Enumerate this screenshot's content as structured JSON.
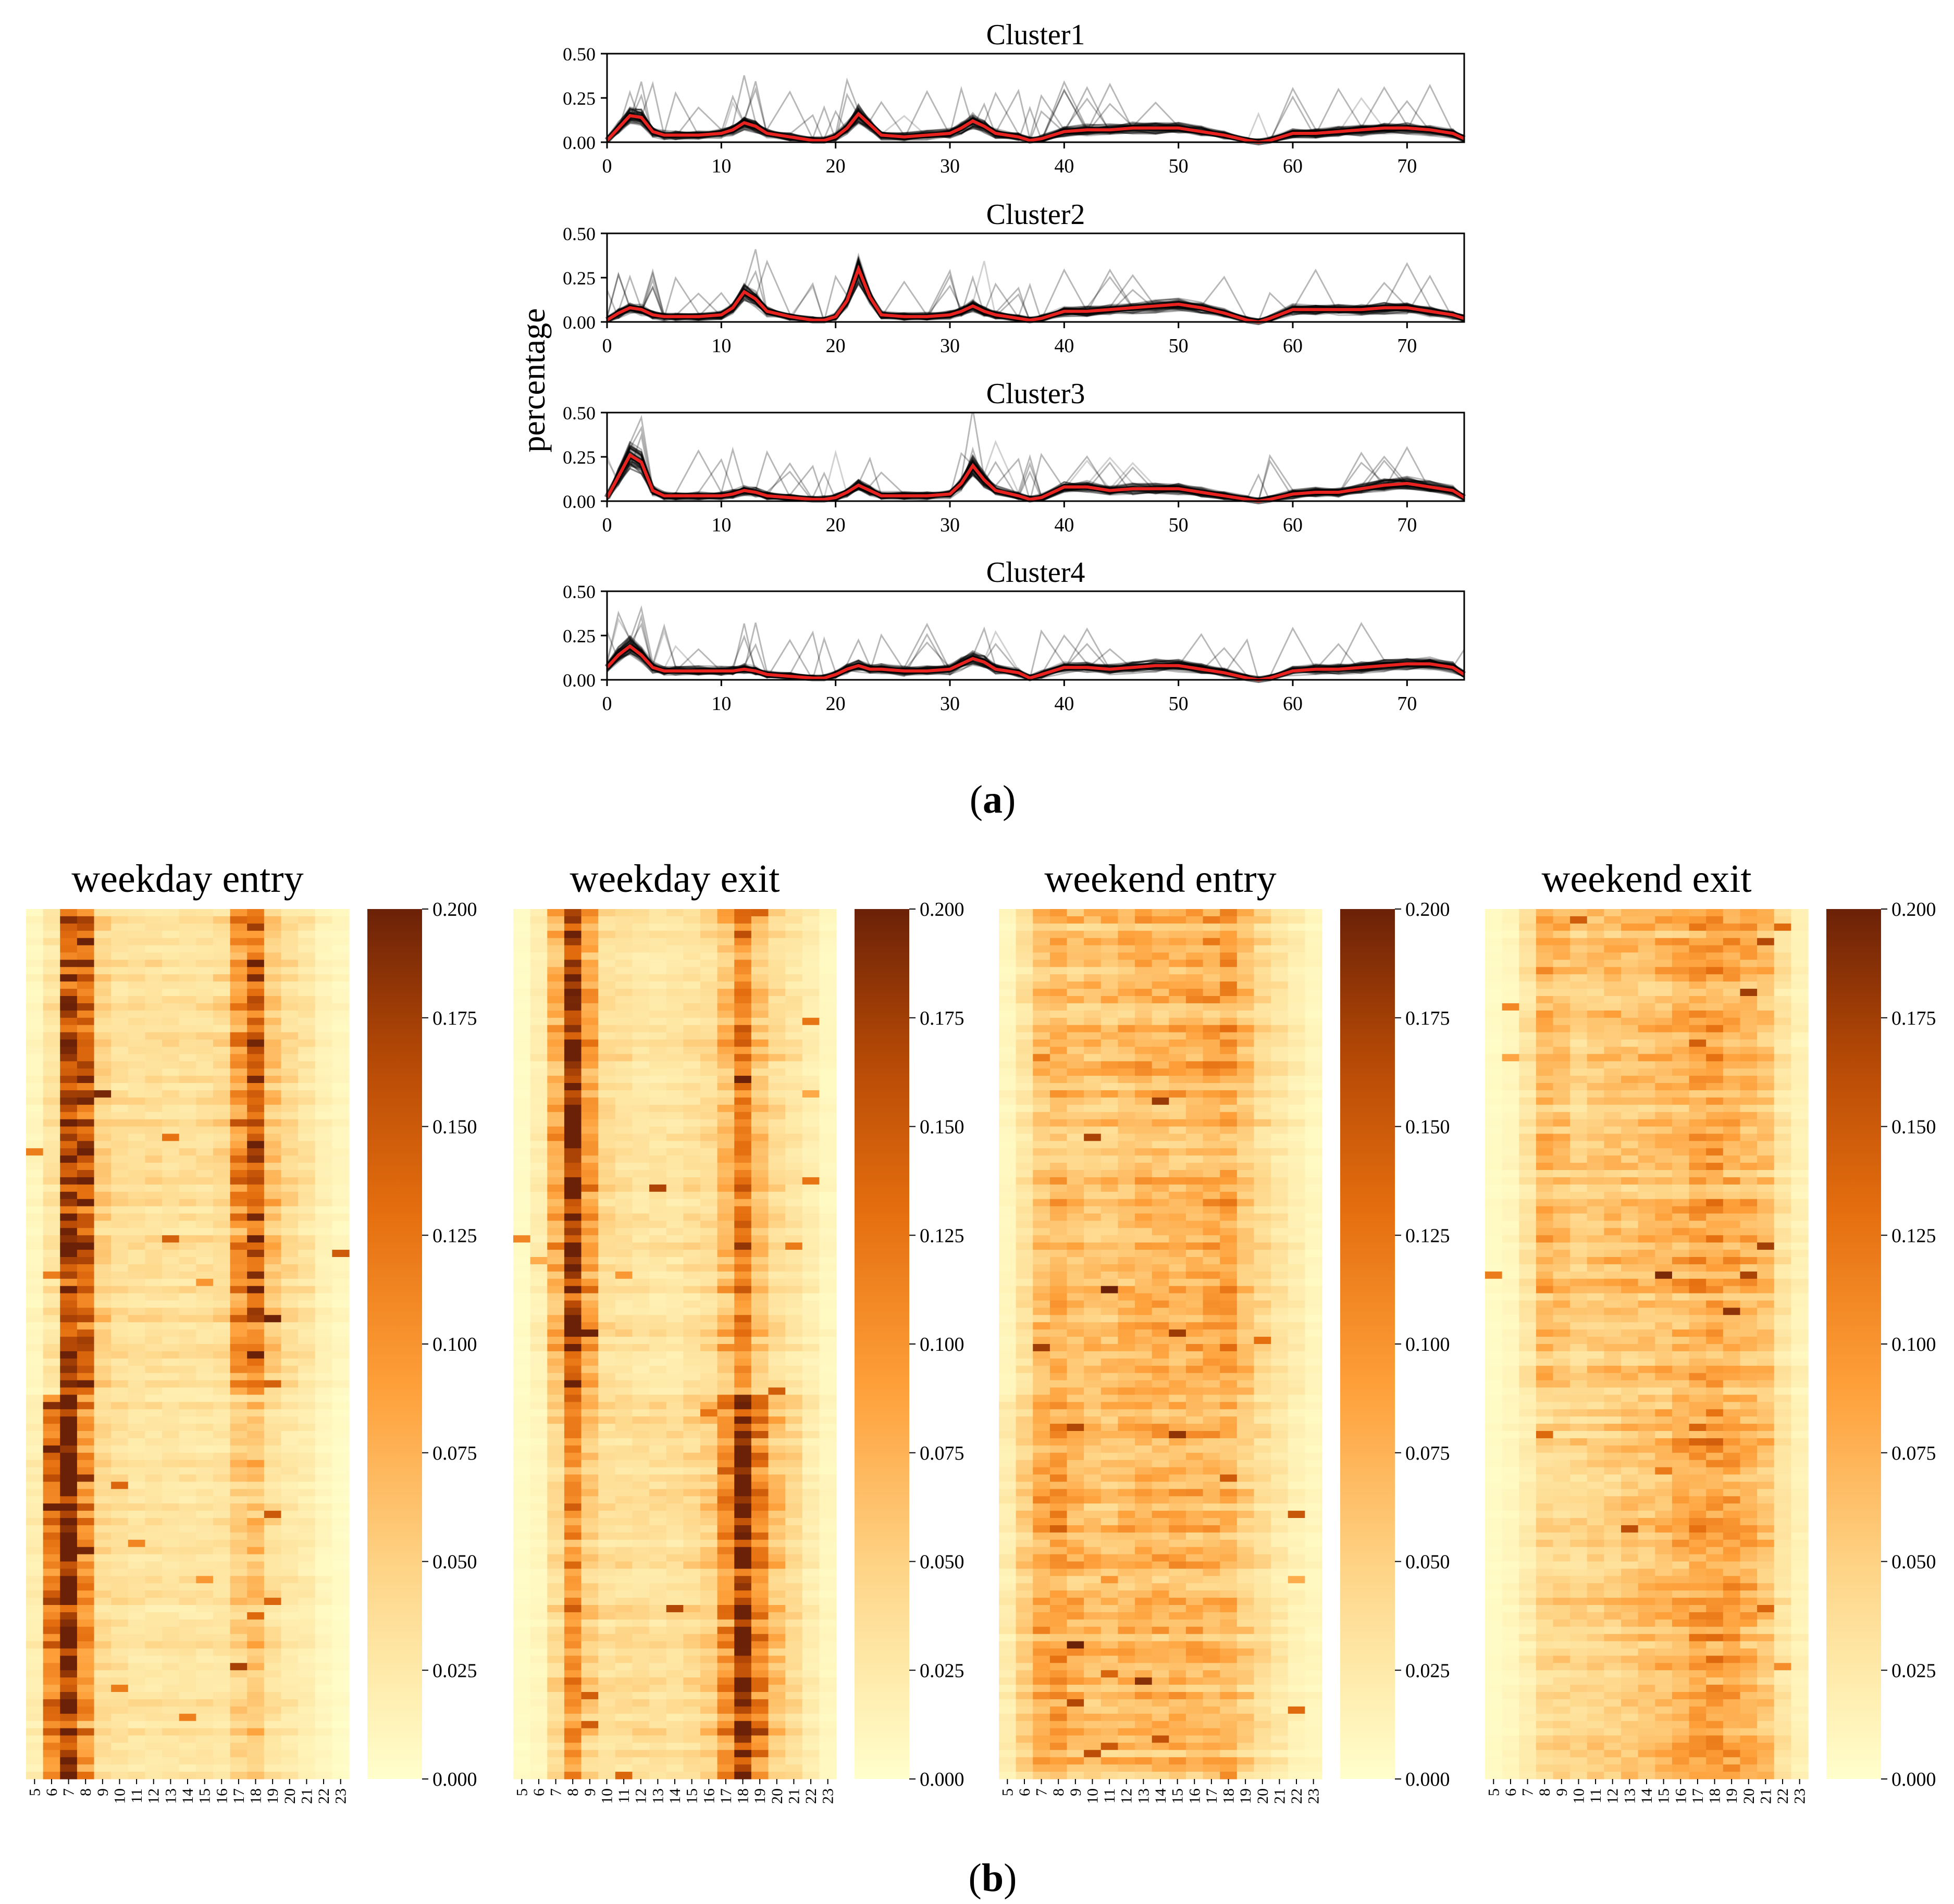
{
  "figure": {
    "panel_a_label_open": "(",
    "panel_a_label_letter": "a",
    "panel_a_label_close": ")",
    "panel_b_label_open": "(",
    "panel_b_label_letter": "b",
    "panel_b_label_close": ")",
    "shared_ylabel": "percentage"
  },
  "colors": {
    "mean_line": "#e8231f",
    "member_lines": "#000000",
    "heat_low": "#ffffcc",
    "heat_high": "#6b2107"
  },
  "chart_data": [
    {
      "type": "line",
      "title": "Cluster1",
      "xlim": [
        0,
        75
      ],
      "ylim": [
        0,
        0.5
      ],
      "xticks": [
        "0",
        "10",
        "20",
        "30",
        "40",
        "50",
        "60",
        "70"
      ],
      "yticks": [
        "0.00",
        "0.25",
        "0.50"
      ],
      "mean_x": [
        0,
        1,
        2,
        3,
        4,
        5,
        6,
        8,
        10,
        11,
        12,
        13,
        14,
        16,
        18,
        19,
        20,
        21,
        22,
        23,
        24,
        26,
        28,
        30,
        31,
        32,
        33,
        34,
        36,
        37,
        38,
        40,
        42,
        44,
        46,
        48,
        50,
        52,
        54,
        56,
        57,
        58,
        60,
        62,
        64,
        66,
        68,
        70,
        72,
        74,
        75
      ],
      "mean_y": [
        0.01,
        0.08,
        0.15,
        0.14,
        0.06,
        0.04,
        0.04,
        0.04,
        0.05,
        0.07,
        0.11,
        0.09,
        0.05,
        0.03,
        0.01,
        0.01,
        0.03,
        0.08,
        0.16,
        0.1,
        0.04,
        0.03,
        0.04,
        0.05,
        0.08,
        0.12,
        0.09,
        0.05,
        0.03,
        0.01,
        0.02,
        0.06,
        0.07,
        0.07,
        0.08,
        0.08,
        0.08,
        0.06,
        0.04,
        0.01,
        0.0,
        0.01,
        0.05,
        0.05,
        0.06,
        0.07,
        0.08,
        0.08,
        0.07,
        0.05,
        0.02
      ],
      "member_count": 60
    },
    {
      "type": "line",
      "title": "Cluster2",
      "xlim": [
        0,
        75
      ],
      "ylim": [
        0,
        0.5
      ],
      "xticks": [
        "0",
        "10",
        "20",
        "30",
        "40",
        "50",
        "60",
        "70"
      ],
      "yticks": [
        "0.00",
        "0.25",
        "0.50"
      ],
      "mean_x": [
        0,
        1,
        2,
        3,
        4,
        5,
        6,
        8,
        10,
        11,
        12,
        13,
        14,
        16,
        18,
        19,
        20,
        21,
        22,
        23,
        24,
        26,
        28,
        30,
        31,
        32,
        33,
        34,
        36,
        37,
        38,
        40,
        42,
        44,
        46,
        48,
        50,
        52,
        54,
        56,
        57,
        58,
        60,
        62,
        64,
        66,
        68,
        70,
        72,
        74,
        75
      ],
      "mean_y": [
        0.01,
        0.05,
        0.08,
        0.07,
        0.04,
        0.03,
        0.03,
        0.03,
        0.04,
        0.08,
        0.17,
        0.13,
        0.06,
        0.03,
        0.01,
        0.01,
        0.03,
        0.12,
        0.3,
        0.14,
        0.04,
        0.03,
        0.03,
        0.04,
        0.06,
        0.09,
        0.06,
        0.04,
        0.02,
        0.01,
        0.02,
        0.06,
        0.06,
        0.07,
        0.08,
        0.09,
        0.1,
        0.08,
        0.05,
        0.01,
        0.0,
        0.02,
        0.07,
        0.07,
        0.07,
        0.07,
        0.08,
        0.08,
        0.06,
        0.04,
        0.02
      ],
      "member_count": 60
    },
    {
      "type": "line",
      "title": "Cluster3",
      "xlim": [
        0,
        75
      ],
      "ylim": [
        0,
        0.5
      ],
      "xticks": [
        "0",
        "10",
        "20",
        "30",
        "40",
        "50",
        "60",
        "70"
      ],
      "yticks": [
        "0.00",
        "0.25",
        "0.50"
      ],
      "mean_x": [
        0,
        1,
        2,
        3,
        4,
        5,
        6,
        8,
        10,
        11,
        12,
        13,
        14,
        16,
        18,
        19,
        20,
        21,
        22,
        23,
        24,
        26,
        28,
        30,
        31,
        32,
        33,
        34,
        36,
        37,
        38,
        40,
        42,
        44,
        46,
        48,
        50,
        52,
        54,
        56,
        57,
        58,
        60,
        62,
        64,
        66,
        68,
        70,
        72,
        74,
        75
      ],
      "mean_y": [
        0.02,
        0.14,
        0.26,
        0.22,
        0.06,
        0.03,
        0.03,
        0.03,
        0.03,
        0.04,
        0.06,
        0.05,
        0.03,
        0.02,
        0.01,
        0.01,
        0.02,
        0.05,
        0.09,
        0.06,
        0.03,
        0.03,
        0.03,
        0.04,
        0.1,
        0.2,
        0.12,
        0.06,
        0.03,
        0.01,
        0.02,
        0.08,
        0.08,
        0.06,
        0.07,
        0.07,
        0.07,
        0.05,
        0.03,
        0.01,
        0.0,
        0.01,
        0.04,
        0.05,
        0.05,
        0.07,
        0.09,
        0.1,
        0.08,
        0.06,
        0.02
      ],
      "member_count": 60
    },
    {
      "type": "line",
      "title": "Cluster4",
      "xlim": [
        0,
        75
      ],
      "ylim": [
        0,
        0.5
      ],
      "xticks": [
        "0",
        "10",
        "20",
        "30",
        "40",
        "50",
        "60",
        "70"
      ],
      "yticks": [
        "0.00",
        "0.25",
        "0.50"
      ],
      "mean_x": [
        0,
        1,
        2,
        3,
        4,
        5,
        6,
        8,
        10,
        11,
        12,
        13,
        14,
        16,
        18,
        19,
        20,
        21,
        22,
        23,
        24,
        26,
        28,
        30,
        31,
        32,
        33,
        34,
        36,
        37,
        38,
        40,
        42,
        44,
        46,
        48,
        50,
        52,
        54,
        56,
        57,
        58,
        60,
        62,
        64,
        66,
        68,
        70,
        72,
        74,
        75
      ],
      "mean_y": [
        0.07,
        0.14,
        0.19,
        0.14,
        0.07,
        0.05,
        0.05,
        0.05,
        0.05,
        0.05,
        0.06,
        0.05,
        0.03,
        0.02,
        0.01,
        0.01,
        0.03,
        0.06,
        0.08,
        0.06,
        0.06,
        0.05,
        0.05,
        0.06,
        0.09,
        0.12,
        0.1,
        0.06,
        0.04,
        0.01,
        0.03,
        0.07,
        0.07,
        0.06,
        0.07,
        0.08,
        0.08,
        0.06,
        0.04,
        0.01,
        0.0,
        0.01,
        0.05,
        0.06,
        0.06,
        0.07,
        0.08,
        0.09,
        0.09,
        0.07,
        0.03
      ],
      "member_count": 60
    },
    {
      "type": "heatmap",
      "title": "weekday entry",
      "x_categories": [
        "5",
        "6",
        "7",
        "8",
        "9",
        "10",
        "11",
        "12",
        "13",
        "14",
        "15",
        "16",
        "17",
        "18",
        "19",
        "20",
        "21",
        "22",
        "23"
      ],
      "rows": 120,
      "vmin": 0,
      "vmax": 0.2,
      "colorbar_ticks": [
        "0.000",
        "0.025",
        "0.050",
        "0.075",
        "0.100",
        "0.125",
        "0.150",
        "0.175",
        "0.200"
      ],
      "profile_top": [
        0.01,
        0.03,
        0.16,
        0.15,
        0.05,
        0.035,
        0.035,
        0.035,
        0.035,
        0.035,
        0.035,
        0.04,
        0.1,
        0.14,
        0.06,
        0.04,
        0.03,
        0.015,
        0.01
      ],
      "profile_bottom": [
        0.02,
        0.12,
        0.21,
        0.1,
        0.04,
        0.035,
        0.03,
        0.03,
        0.03,
        0.03,
        0.03,
        0.03,
        0.05,
        0.06,
        0.035,
        0.025,
        0.02,
        0.01,
        0.005
      ],
      "split_row": 67
    },
    {
      "type": "heatmap",
      "title": "weekday exit",
      "x_categories": [
        "5",
        "6",
        "7",
        "8",
        "9",
        "10",
        "11",
        "12",
        "13",
        "14",
        "15",
        "16",
        "17",
        "18",
        "19",
        "20",
        "21",
        "22",
        "23"
      ],
      "rows": 120,
      "vmin": 0,
      "vmax": 0.2,
      "colorbar_ticks": [
        "0.000",
        "0.025",
        "0.050",
        "0.075",
        "0.100",
        "0.125",
        "0.150",
        "0.175",
        "0.200"
      ],
      "profile_top": [
        0.005,
        0.02,
        0.08,
        0.2,
        0.09,
        0.04,
        0.035,
        0.03,
        0.03,
        0.03,
        0.035,
        0.04,
        0.07,
        0.12,
        0.06,
        0.04,
        0.03,
        0.02,
        0.01
      ],
      "profile_bottom": [
        0.005,
        0.01,
        0.04,
        0.1,
        0.05,
        0.035,
        0.035,
        0.035,
        0.035,
        0.035,
        0.04,
        0.05,
        0.1,
        0.19,
        0.11,
        0.06,
        0.04,
        0.02,
        0.01
      ],
      "split_row": 67
    },
    {
      "type": "heatmap",
      "title": "weekend entry",
      "x_categories": [
        "5",
        "6",
        "7",
        "8",
        "9",
        "10",
        "11",
        "12",
        "13",
        "14",
        "15",
        "16",
        "17",
        "18",
        "19",
        "20",
        "21",
        "22",
        "23"
      ],
      "rows": 120,
      "vmin": 0,
      "vmax": 0.2,
      "colorbar_ticks": [
        "0.000",
        "0.025",
        "0.050",
        "0.075",
        "0.100",
        "0.125",
        "0.150",
        "0.175",
        "0.200"
      ],
      "profile_top": [
        0.01,
        0.03,
        0.06,
        0.07,
        0.06,
        0.06,
        0.06,
        0.065,
        0.07,
        0.07,
        0.07,
        0.075,
        0.08,
        0.085,
        0.06,
        0.04,
        0.03,
        0.02,
        0.01
      ],
      "profile_bottom": [
        0.02,
        0.05,
        0.08,
        0.09,
        0.07,
        0.06,
        0.06,
        0.065,
        0.07,
        0.07,
        0.07,
        0.07,
        0.07,
        0.07,
        0.05,
        0.035,
        0.025,
        0.015,
        0.01
      ],
      "split_row": 67
    },
    {
      "type": "heatmap",
      "title": "weekend exit",
      "x_categories": [
        "5",
        "6",
        "7",
        "8",
        "9",
        "10",
        "11",
        "12",
        "13",
        "14",
        "15",
        "16",
        "17",
        "18",
        "19",
        "20",
        "21",
        "22",
        "23"
      ],
      "rows": 120,
      "vmin": 0,
      "vmax": 0.2,
      "colorbar_ticks": [
        "0.000",
        "0.025",
        "0.050",
        "0.075",
        "0.100",
        "0.125",
        "0.150",
        "0.175",
        "0.200"
      ],
      "profile_top": [
        0.005,
        0.01,
        0.03,
        0.07,
        0.06,
        0.05,
        0.055,
        0.06,
        0.06,
        0.06,
        0.065,
        0.07,
        0.08,
        0.085,
        0.075,
        0.07,
        0.06,
        0.03,
        0.015
      ],
      "profile_bottom": [
        0.005,
        0.01,
        0.02,
        0.04,
        0.045,
        0.045,
        0.05,
        0.05,
        0.055,
        0.06,
        0.065,
        0.075,
        0.09,
        0.095,
        0.085,
        0.075,
        0.06,
        0.03,
        0.015
      ],
      "split_row": 67
    }
  ]
}
